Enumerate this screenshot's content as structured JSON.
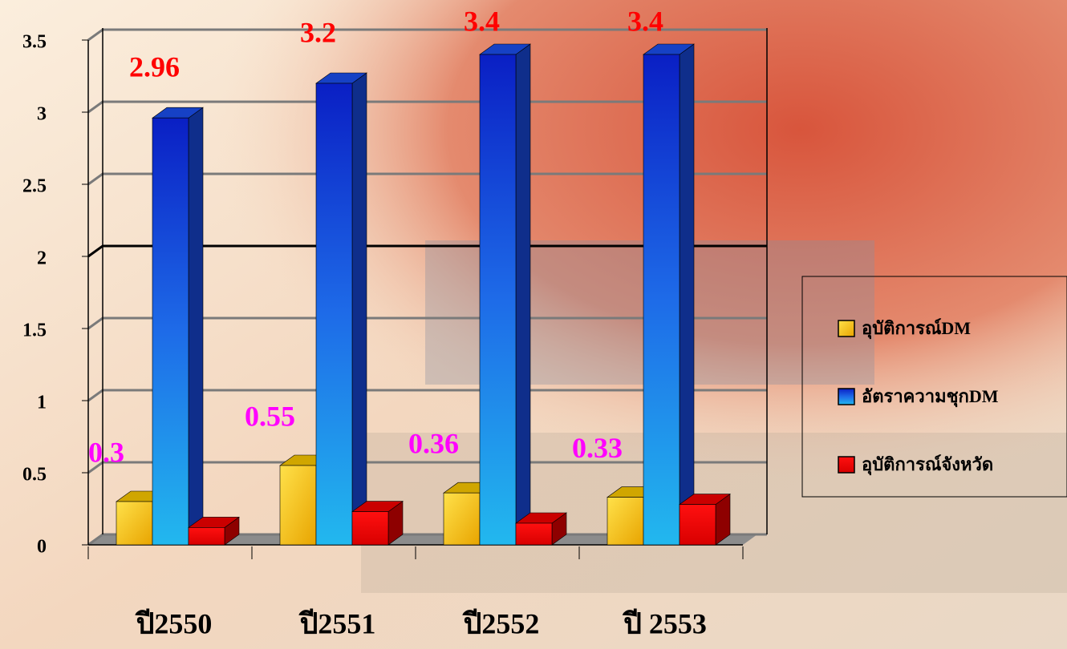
{
  "chart_data": {
    "type": "bar3d",
    "categories": [
      "ปี2550",
      "ปี2551",
      "ปี2552",
      "ปี 2553"
    ],
    "series": [
      {
        "name": "อุบัติการณ์DM",
        "color": "#f5c400",
        "values": [
          0.3,
          0.55,
          0.36,
          0.33
        ],
        "show_labels": true,
        "label_color": "#ff00ff"
      },
      {
        "name": "อัตราความชุกDM",
        "color": "#1a4de8",
        "values": [
          2.96,
          3.2,
          3.4,
          3.4
        ],
        "show_labels": true,
        "label_color": "#ff0000"
      },
      {
        "name": "อุบัติการณ์จังหวัด",
        "color": "#ee0000",
        "values": [
          0.12,
          0.23,
          0.15,
          0.28
        ],
        "show_labels": false
      }
    ],
    "ylim": [
      0,
      3.5
    ],
    "yticks": [
      0,
      0.5,
      1,
      1.5,
      2,
      2.5,
      3,
      3.5
    ],
    "grid": true,
    "legend": "right"
  }
}
